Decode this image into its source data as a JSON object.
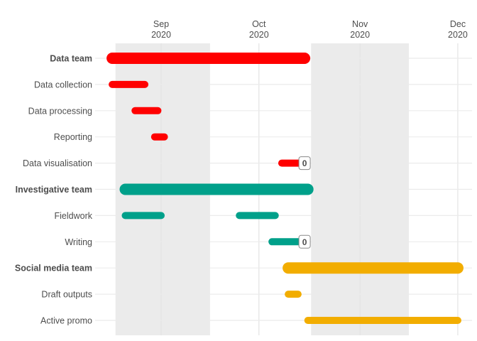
{
  "chart_data": {
    "type": "gantt",
    "title": "",
    "xlabel": "",
    "ylabel": "",
    "x_ticks": [
      {
        "date": "2020-09-01",
        "label1": "Sep",
        "label2": "2020"
      },
      {
        "date": "2020-10-01",
        "label1": "Oct",
        "label2": "2020"
      },
      {
        "date": "2020-11-01",
        "label1": "Nov",
        "label2": "2020"
      },
      {
        "date": "2020-12-01",
        "label1": "Dec",
        "label2": "2020"
      }
    ],
    "shaded_periods": [
      [
        "2020-08-18",
        "2020-09-16"
      ],
      [
        "2020-10-17",
        "2020-11-16"
      ]
    ],
    "colors": {
      "Data team": "#ff0000",
      "Investigative team": "#00a08a",
      "Social media team": "#f2ad00"
    },
    "rows": [
      {
        "label": "Data team",
        "team": "Data team",
        "header": true,
        "segments": [
          [
            "2020-08-17",
            "2020-10-15"
          ]
        ]
      },
      {
        "label": "Data collection",
        "team": "Data team",
        "segments": [
          [
            "2020-08-17",
            "2020-08-27"
          ]
        ]
      },
      {
        "label": "Data processing",
        "team": "Data team",
        "segments": [
          [
            "2020-08-24",
            "2020-08-31"
          ]
        ]
      },
      {
        "label": "Reporting",
        "team": "Data team",
        "segments": [
          [
            "2020-08-30",
            "2020-09-02"
          ]
        ]
      },
      {
        "label": "Data visualisation",
        "team": "Data team",
        "segments": [
          [
            "2020-10-08",
            "2020-10-15"
          ]
        ],
        "milestone": "0"
      },
      {
        "label": "Investigative team",
        "team": "Investigative team",
        "header": true,
        "segments": [
          [
            "2020-08-21",
            "2020-10-16"
          ]
        ]
      },
      {
        "label": "Fieldwork",
        "team": "Investigative team",
        "segments": [
          [
            "2020-08-21",
            "2020-09-01"
          ],
          [
            "2020-09-25",
            "2020-10-06"
          ]
        ]
      },
      {
        "label": "Writing",
        "team": "Investigative team",
        "segments": [
          [
            "2020-10-05",
            "2020-10-15"
          ]
        ],
        "milestone": "0"
      },
      {
        "label": "Social media team",
        "team": "Social media team",
        "header": true,
        "segments": [
          [
            "2020-10-10",
            "2020-12-01"
          ]
        ]
      },
      {
        "label": "Draft outputs",
        "team": "Social media team",
        "segments": [
          [
            "2020-10-10",
            "2020-10-13"
          ]
        ]
      },
      {
        "label": "Active promo",
        "team": "Social media team",
        "segments": [
          [
            "2020-10-16",
            "2020-12-01"
          ]
        ]
      }
    ]
  }
}
